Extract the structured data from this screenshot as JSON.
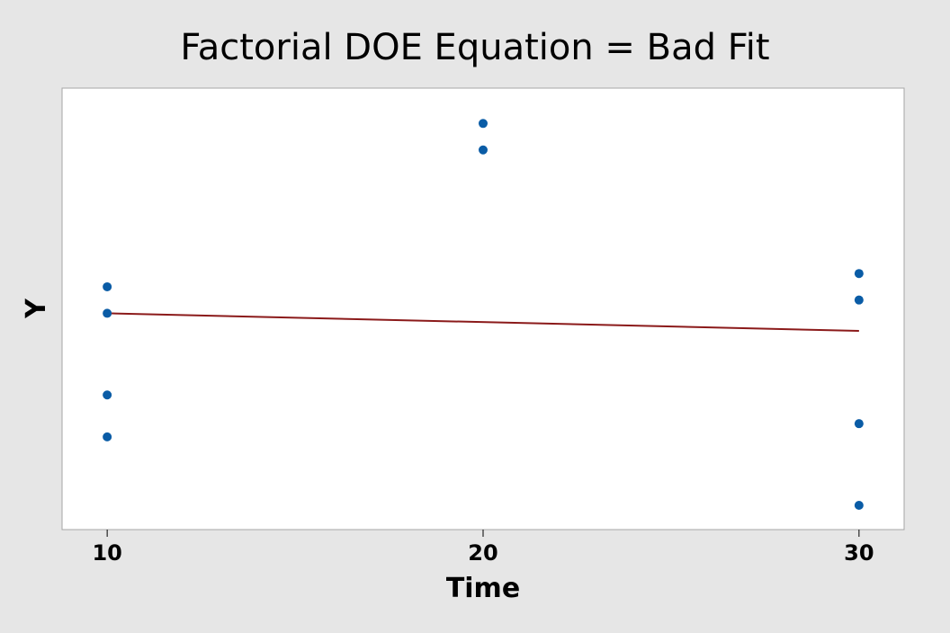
{
  "chart_data": {
    "type": "scatter",
    "title": "Factorial DOE Equation = Bad Fit",
    "xlabel": "Time",
    "ylabel": "Y",
    "x_ticks": [
      10,
      20,
      30
    ],
    "xlim": [
      8.8,
      31.2
    ],
    "ylim": [
      0,
      100
    ],
    "grid": false,
    "legend": "none",
    "series": [
      {
        "type": "scatter",
        "color": "#0a5ca6",
        "points": [
          {
            "x": 10,
            "y": 55
          },
          {
            "x": 10,
            "y": 49
          },
          {
            "x": 10,
            "y": 30.5
          },
          {
            "x": 10,
            "y": 21
          },
          {
            "x": 20,
            "y": 92
          },
          {
            "x": 20,
            "y": 86
          },
          {
            "x": 30,
            "y": 58
          },
          {
            "x": 30,
            "y": 52
          },
          {
            "x": 30,
            "y": 24
          },
          {
            "x": 30,
            "y": 5.5
          }
        ]
      },
      {
        "type": "line",
        "color": "#8b1a1a",
        "points": [
          {
            "x": 10,
            "y": 49
          },
          {
            "x": 30,
            "y": 45
          }
        ]
      }
    ],
    "colors": {
      "background": "#e6e6e6",
      "plot_area": "#ffffff",
      "plot_border": "#a6a6a6",
      "axis": "#000000"
    }
  }
}
